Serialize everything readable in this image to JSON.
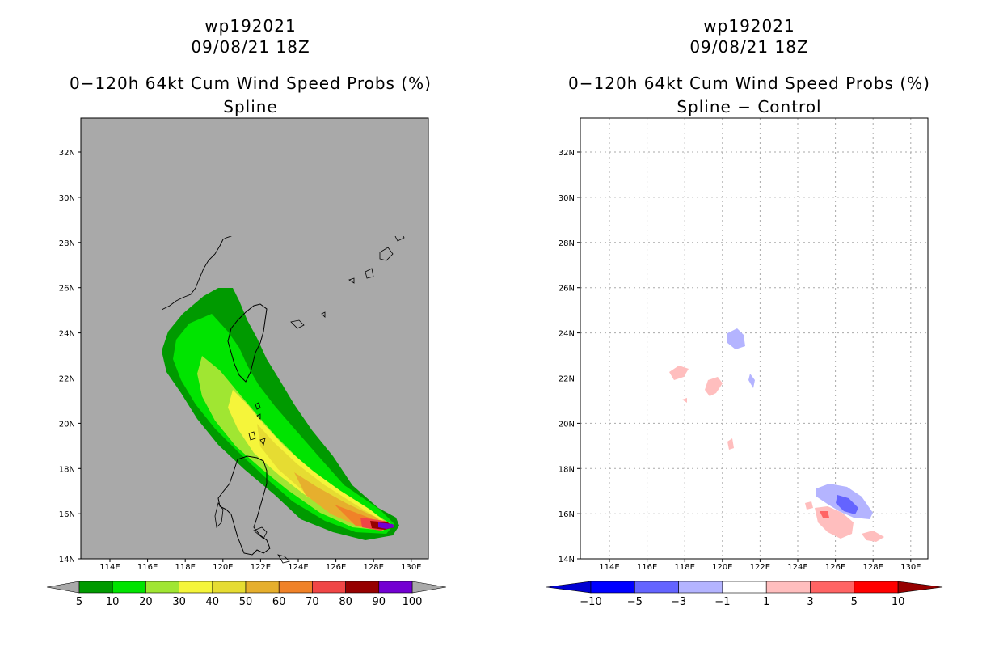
{
  "left_panel": {
    "storm_id": "wp192021",
    "datetime": "09/08/21 18Z",
    "product": "0−120h 64kt Cum Wind Speed Probs (%)",
    "subtitle": "Spline",
    "colorbar_labels": [
      "5",
      "10",
      "20",
      "30",
      "40",
      "50",
      "60",
      "70",
      "80",
      "90",
      "100"
    ],
    "colorbar_colors": [
      "#009a00",
      "#00e400",
      "#a0e632",
      "#f5f53a",
      "#e6dc32",
      "#e6af2d",
      "#f08228",
      "#f04646",
      "#960000",
      "#7300d2"
    ]
  },
  "right_panel": {
    "storm_id": "wp192021",
    "datetime": "09/08/21 18Z",
    "product": "0−120h 64kt Cum Wind Speed Probs (%)",
    "subtitle": "Spline − Control",
    "colorbar_labels": [
      "−10",
      "−5",
      "−3",
      "−1",
      "1",
      "3",
      "5",
      "10"
    ],
    "colorbar_colors": [
      "#0000d2",
      "#0000ff",
      "#6464ff",
      "#b4b4ff",
      "#ffffff",
      "#ffbebe",
      "#ff6464",
      "#ff0000",
      "#960000"
    ]
  },
  "map": {
    "lat_labels": [
      "32N",
      "30N",
      "28N",
      "26N",
      "24N",
      "22N",
      "20N",
      "18N",
      "16N",
      "14N"
    ],
    "lon_labels": [
      "114E",
      "116E",
      "118E",
      "120E",
      "122E",
      "124E",
      "126E",
      "128E",
      "130E"
    ],
    "ocean_fill_left": "#a9a9a9",
    "grid_color": "#aaaaaa"
  }
}
